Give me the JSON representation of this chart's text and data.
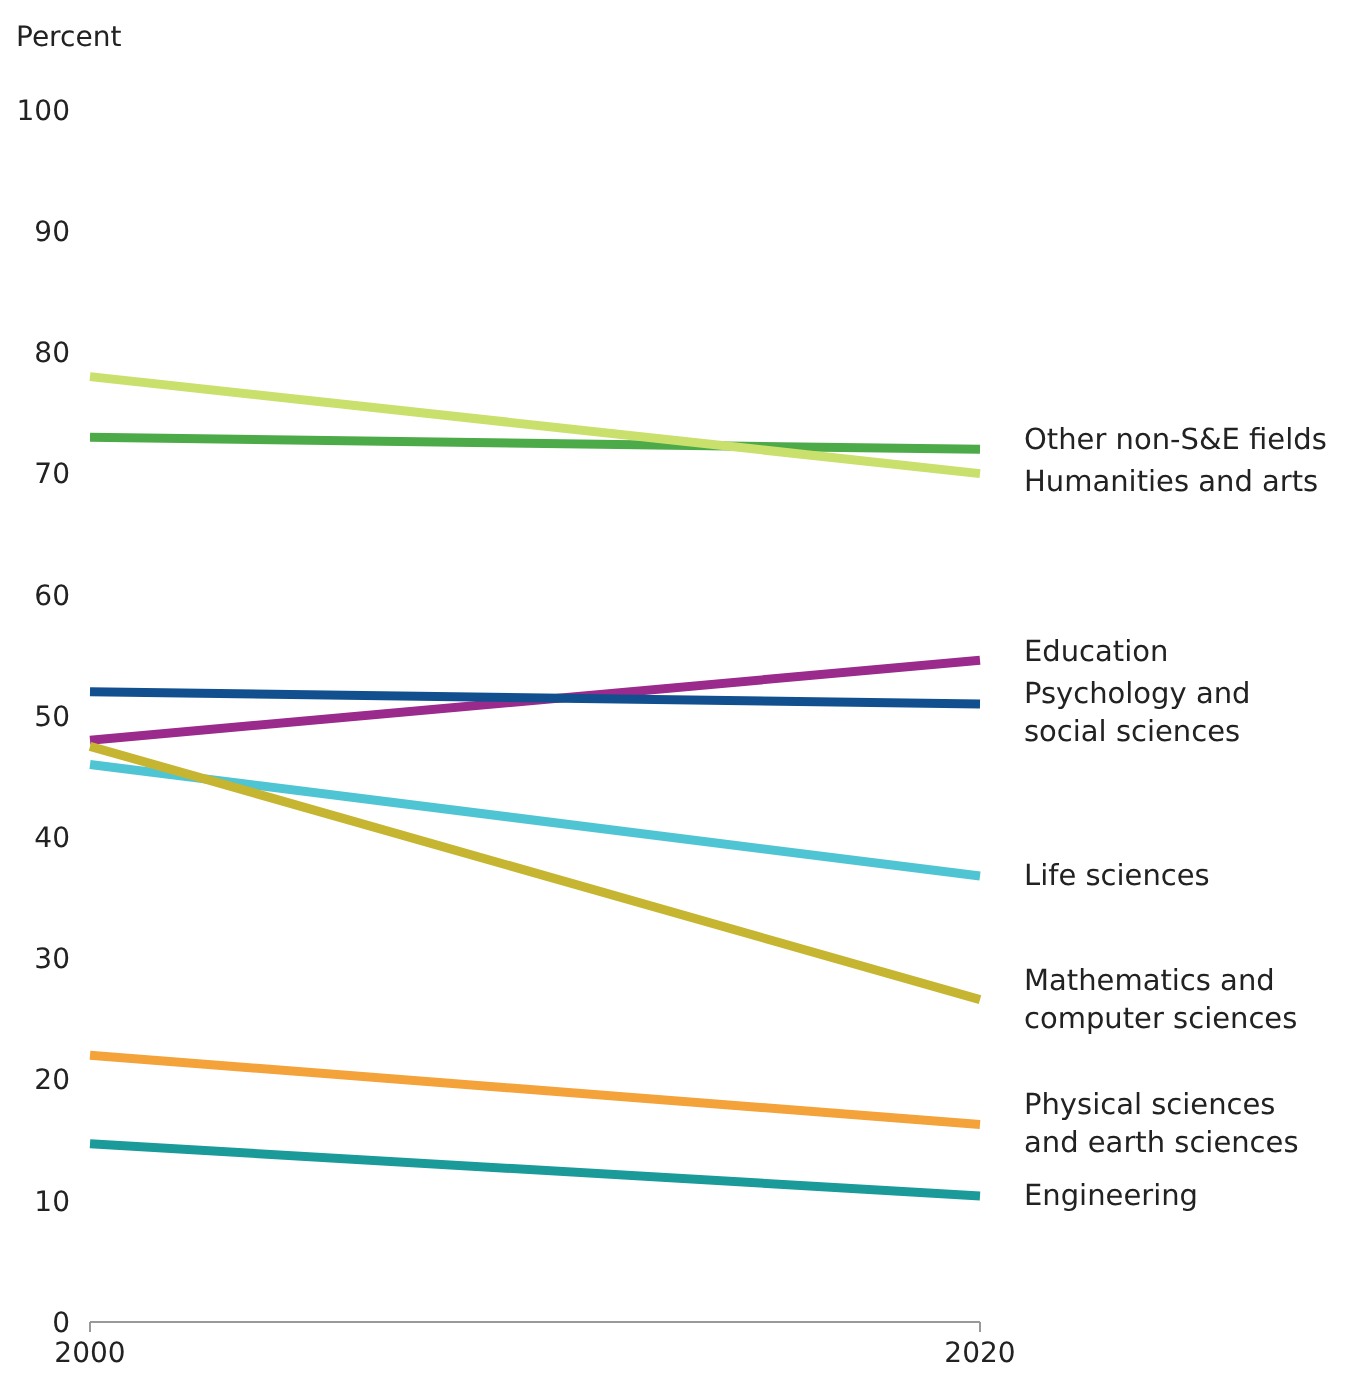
{
  "chart_data": {
    "type": "line",
    "ylabel": "Percent",
    "x": [
      2000,
      2020
    ],
    "xlim": [
      2000,
      2020
    ],
    "xticks": [
      2000,
      2020
    ],
    "ylim": [
      0,
      100
    ],
    "yticks": [
      0,
      10,
      20,
      30,
      40,
      50,
      60,
      70,
      80,
      90,
      100
    ],
    "line_style": "solid",
    "series": [
      {
        "name": "Other non-S&E fields",
        "color": "#4caa48",
        "values": [
          73,
          72
        ]
      },
      {
        "name": "Humanities and arts",
        "color": "#c9e06c",
        "values": [
          78,
          70
        ]
      },
      {
        "name": "Education",
        "color": "#9a2a8c",
        "values": [
          48,
          54.6
        ]
      },
      {
        "name": "Psychology and social sciences",
        "color": "#114f8f",
        "values": [
          52,
          51
        ]
      },
      {
        "name": "Life sciences",
        "color": "#4fc5d3",
        "values": [
          46,
          36.8
        ]
      },
      {
        "name": "Mathematics and computer sciences",
        "color": "#c5b530",
        "values": [
          47.5,
          26.6
        ]
      },
      {
        "name": "Physical sciences and earth sciences",
        "color": "#f4a23a",
        "values": [
          22,
          16.3
        ]
      },
      {
        "name": "Engineering",
        "color": "#1b9a9a",
        "values": [
          14.7,
          10.4
        ]
      }
    ]
  }
}
